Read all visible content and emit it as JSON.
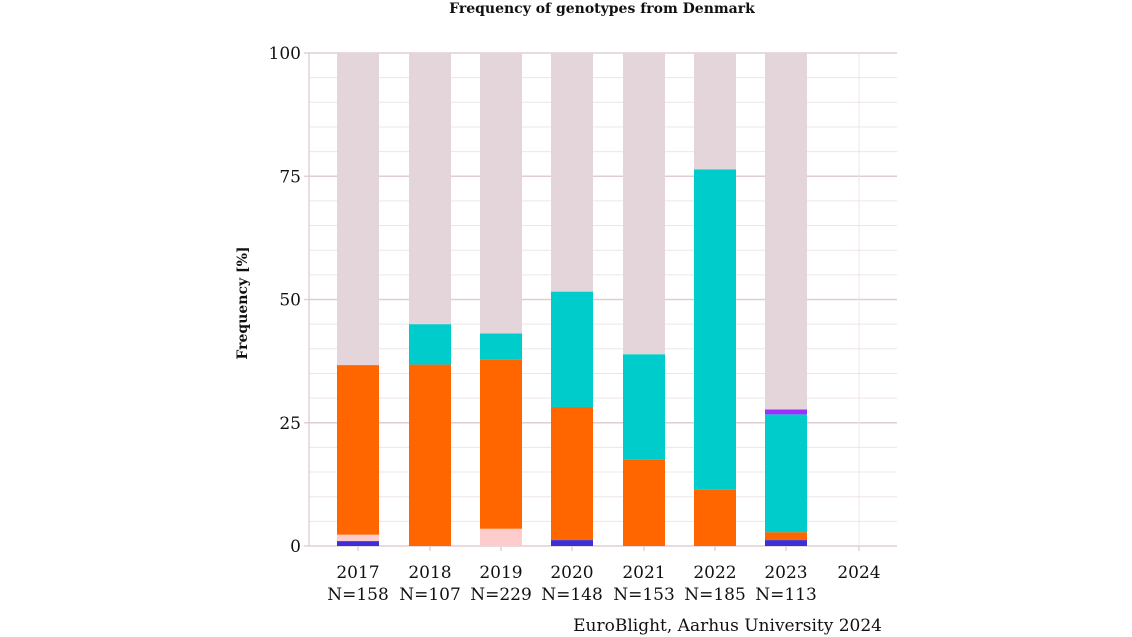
{
  "chart_data": {
    "type": "bar",
    "stacked": true,
    "title": "Frequency of genotypes from Denmark",
    "ylabel": "Frequency [%]",
    "xlabel": "",
    "ylim": [
      0,
      100
    ],
    "yticks": [
      0,
      25,
      50,
      75,
      100
    ],
    "grid": true,
    "legend": "none",
    "categories": [
      "2017",
      "2018",
      "2019",
      "2020",
      "2021",
      "2022",
      "2023",
      "2024"
    ],
    "sample_sizes": [
      "N=158",
      "N=107",
      "N=229",
      "N=148",
      "N=153",
      "N=185",
      "N=113",
      ""
    ],
    "series": [
      {
        "color": "#3a2fd8",
        "values": [
          1.0,
          0,
          0,
          1.2,
          0,
          0,
          1.2,
          0
        ]
      },
      {
        "color": "#ffcccc",
        "values": [
          1.3,
          0,
          3.5,
          0,
          0,
          0,
          0,
          0
        ]
      },
      {
        "color": "#ff6600",
        "values": [
          34.4,
          36.8,
          34.3,
          27.0,
          17.6,
          11.5,
          1.6,
          0
        ]
      },
      {
        "color": "#00cccc",
        "values": [
          0,
          8.2,
          5.3,
          23.4,
          21.3,
          64.9,
          23.9,
          0
        ]
      },
      {
        "color": "#9b30ff",
        "values": [
          0,
          0,
          0,
          0,
          0,
          0,
          1.0,
          0
        ]
      },
      {
        "color": "#e4d5da",
        "values": [
          63.3,
          55.0,
          56.9,
          48.4,
          61.1,
          23.6,
          72.3,
          0
        ]
      }
    ],
    "caption": "EuroBlight, Aarhus University 2024"
  }
}
